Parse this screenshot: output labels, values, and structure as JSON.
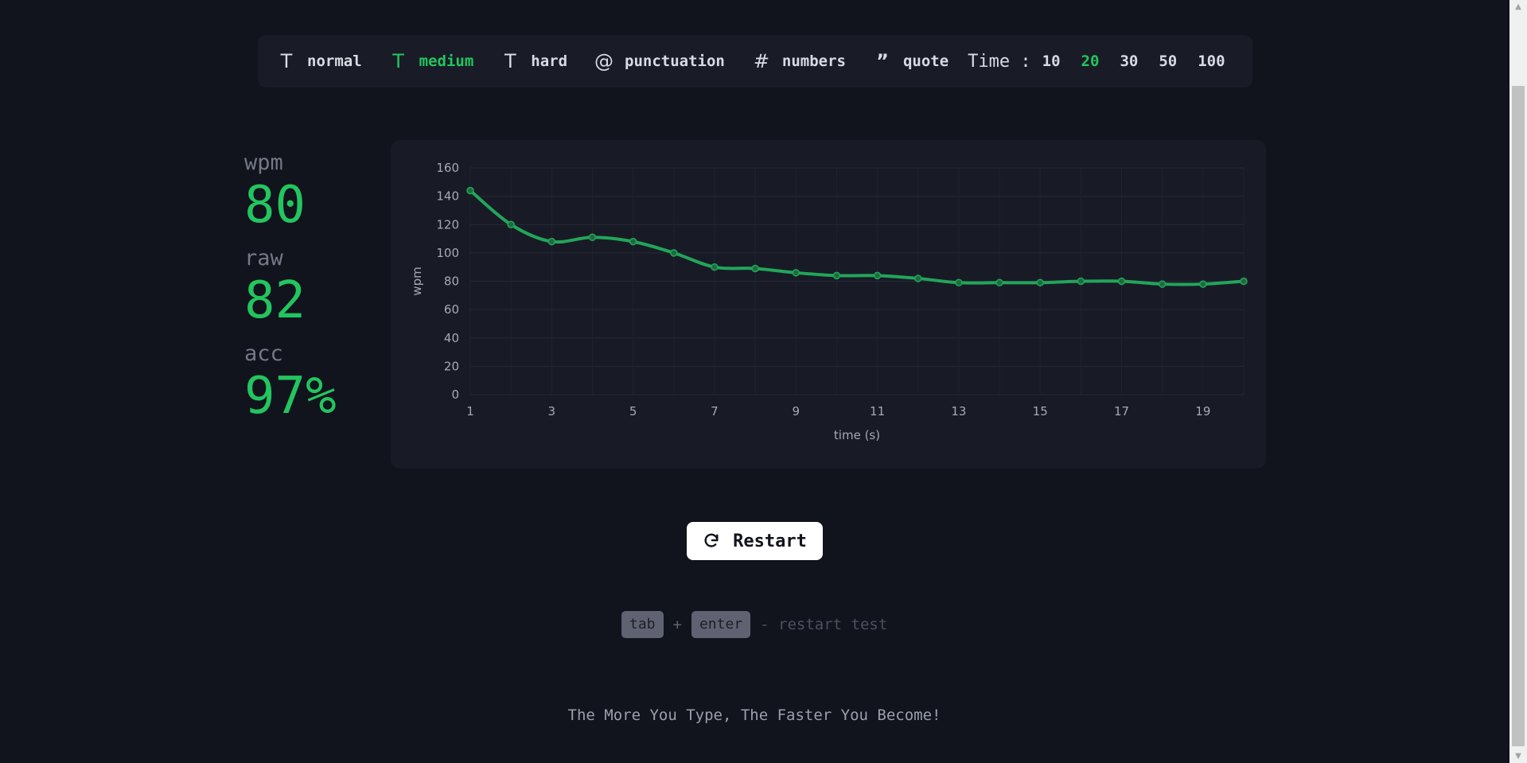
{
  "toolbar": {
    "modes": [
      {
        "icon": "text-icon",
        "label": "normal",
        "active": false
      },
      {
        "icon": "text-icon",
        "label": "medium",
        "active": true
      },
      {
        "icon": "text-icon",
        "label": "hard",
        "active": false
      },
      {
        "icon": "at-icon",
        "label": "punctuation",
        "active": false
      },
      {
        "icon": "hash-icon",
        "label": "numbers",
        "active": false
      },
      {
        "icon": "quote-icon",
        "label": "quote",
        "active": false
      }
    ],
    "time_label": "Time :",
    "time_options": [
      "10",
      "20",
      "30",
      "50",
      "100"
    ],
    "time_selected": "20"
  },
  "stats": {
    "wpm_label": "wpm",
    "wpm_value": "80",
    "raw_label": "raw",
    "raw_value": "82",
    "acc_label": "acc",
    "acc_value": "97%"
  },
  "chart_data": {
    "type": "line",
    "x": [
      1,
      2,
      3,
      4,
      5,
      6,
      7,
      8,
      9,
      10,
      11,
      12,
      13,
      14,
      15,
      16,
      17,
      18,
      19,
      20
    ],
    "series": [
      {
        "values": [
          144,
          120,
          108,
          111,
          108,
          100,
          90,
          89,
          86,
          84,
          84,
          82,
          79,
          79,
          79,
          80,
          80,
          78,
          78,
          80
        ]
      }
    ],
    "x_ticks": [
      1,
      3,
      5,
      7,
      9,
      11,
      13,
      15,
      17,
      19
    ],
    "y_ticks": [
      0,
      20,
      40,
      60,
      80,
      100,
      120,
      140,
      160
    ],
    "xlabel": "time (s)",
    "ylabel": "wpm",
    "xlim": [
      1,
      20
    ],
    "ylim": [
      0,
      160
    ],
    "grid": true,
    "line_color": "#22a55a"
  },
  "restart": {
    "icon": "refresh-icon",
    "label": "Restart"
  },
  "hint": {
    "key1": "tab",
    "plus": "+",
    "key2": "enter",
    "text": "- restart test"
  },
  "tagline": "The More You Type, The Faster You Become!",
  "colors": {
    "background": "#11131d",
    "panel": "#191c27",
    "accent": "#22c55e",
    "text": "#d8dbe3",
    "muted": "#737987"
  }
}
